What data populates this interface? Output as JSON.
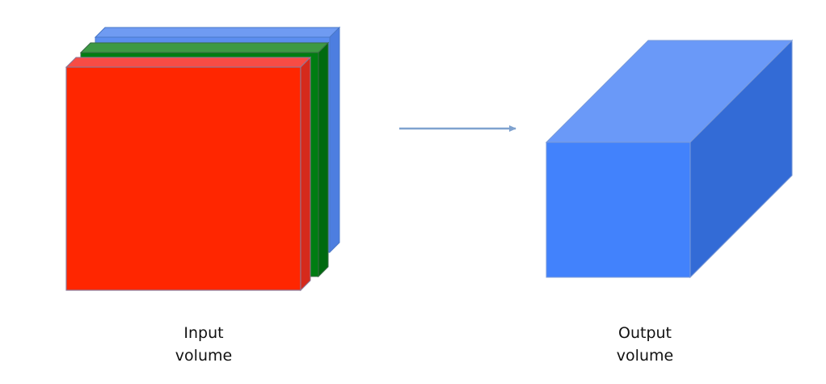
{
  "input_volume": {
    "caption_line1": "Input",
    "caption_line2": "volume",
    "channel_colors": {
      "red": "#ff2600",
      "green": "#007d12",
      "blue": "#5b8ef0"
    }
  },
  "output_volume": {
    "caption_line1": "Output",
    "caption_line2": "volume",
    "colors": {
      "front": "#4282fc",
      "top": "#6a99f8",
      "side": "#336bd6"
    }
  },
  "arrow": {
    "color": "#7fa2cf"
  }
}
